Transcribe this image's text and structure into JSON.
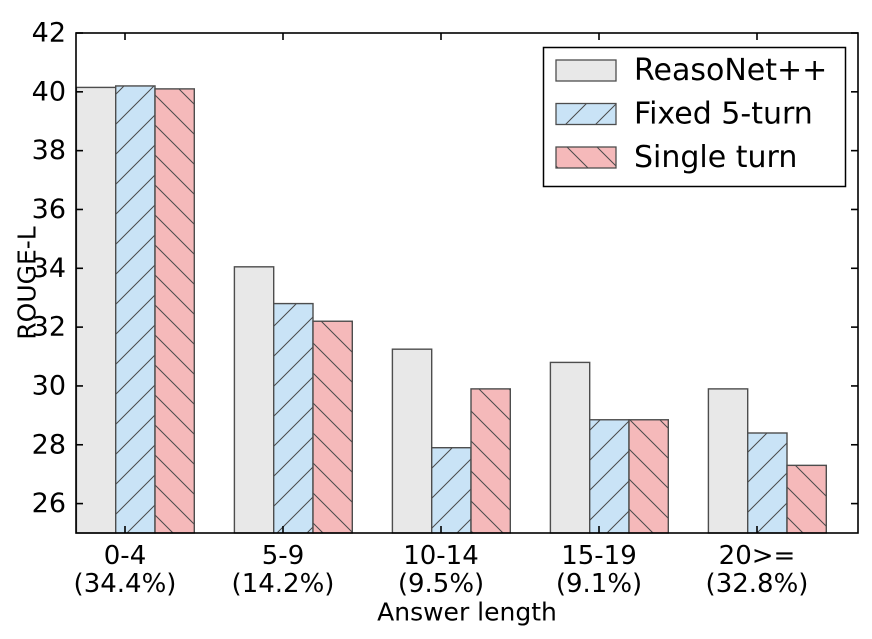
{
  "chart_data": {
    "type": "bar",
    "title": "",
    "xlabel": "Answer length",
    "ylabel": "ROUGE-L",
    "ylim": [
      25,
      42
    ],
    "yticks": [
      26,
      28,
      30,
      32,
      34,
      36,
      38,
      40,
      42
    ],
    "grid": false,
    "legend_position": "upper right",
    "categories": [
      "0-4",
      "5-9",
      "10-14",
      "15-19",
      "20>="
    ],
    "category_sublabels": [
      "(34.4%)",
      "(14.2%)",
      "(9.5%)",
      "(9.1%)",
      "(32.8%)"
    ],
    "series": [
      {
        "name": "ReasoNet++",
        "color": "#e8e8e8",
        "hatch": "",
        "values": [
          40.15,
          34.05,
          31.25,
          30.8,
          29.9
        ]
      },
      {
        "name": "Fixed 5-turn",
        "color": "#c9e3f6",
        "hatch": "/",
        "values": [
          40.2,
          32.8,
          27.9,
          28.85,
          28.4
        ]
      },
      {
        "name": "Single turn",
        "color": "#f5b9ba",
        "hatch": "\\",
        "values": [
          40.1,
          32.2,
          29.9,
          28.85,
          27.3
        ]
      }
    ],
    "colors": {
      "bar_edge": "#4d4d4d",
      "hatch_line": "#4a4a4a",
      "axis": "#000000",
      "background": "#ffffff"
    }
  }
}
